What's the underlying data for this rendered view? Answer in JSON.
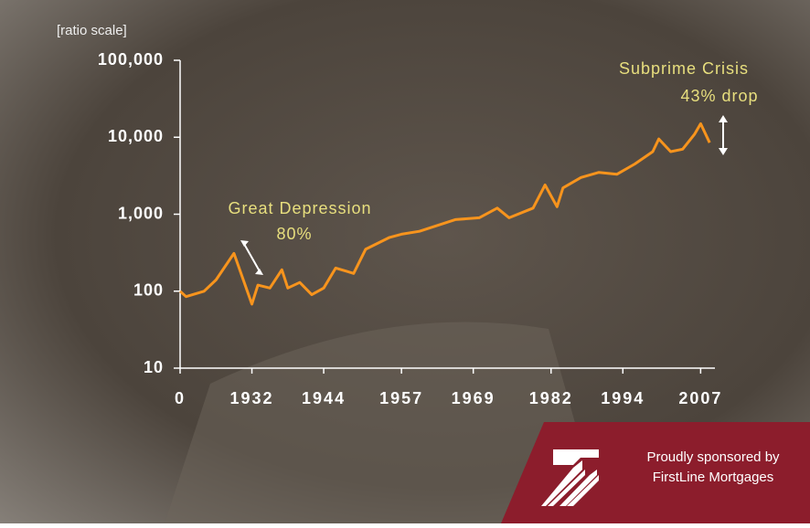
{
  "chart_data": {
    "type": "line",
    "y_axis_note": "[ratio scale]",
    "log_scale": true,
    "x": [
      1920,
      1921,
      1924,
      1926,
      1929,
      1932,
      1933,
      1935,
      1937,
      1938,
      1940,
      1942,
      1944,
      1946,
      1949,
      1951,
      1955,
      1957,
      1960,
      1966,
      1970,
      1973,
      1975,
      1979,
      1981,
      1983,
      1984,
      1987,
      1990,
      1993,
      1996,
      1999,
      2000,
      2002,
      2004,
      2006,
      2007,
      2008.5
    ],
    "series": [
      {
        "color": "#f7941d",
        "values": [
          100,
          85,
          100,
          140,
          310,
          68,
          120,
          110,
          190,
          110,
          130,
          90,
          110,
          200,
          170,
          350,
          500,
          550,
          600,
          850,
          900,
          1200,
          900,
          1200,
          2400,
          1250,
          2200,
          3000,
          3500,
          3300,
          4500,
          6500,
          9500,
          6500,
          7000,
          11000,
          15000,
          8500
        ]
      }
    ],
    "xlim": [
      1920,
      2010
    ],
    "xticks": [
      {
        "value": 1920,
        "label": "0"
      },
      1932,
      1944,
      1957,
      1969,
      1982,
      1994,
      2007
    ],
    "ylim": [
      10,
      100000
    ],
    "yticks": [
      {
        "value": 100000,
        "label": "100,000"
      },
      {
        "value": 10000,
        "label": "10,000"
      },
      {
        "value": 1000,
        "label": "1,000"
      },
      100,
      10
    ],
    "annotations": [
      {
        "text": "Great Depression"
      },
      {
        "text": "80%"
      },
      {
        "text": "Subprime Crisis"
      },
      {
        "text": "43% drop"
      }
    ]
  },
  "sponsor": {
    "line1": "Proudly sponsored by",
    "line2": "FirstLine Mortgages"
  }
}
